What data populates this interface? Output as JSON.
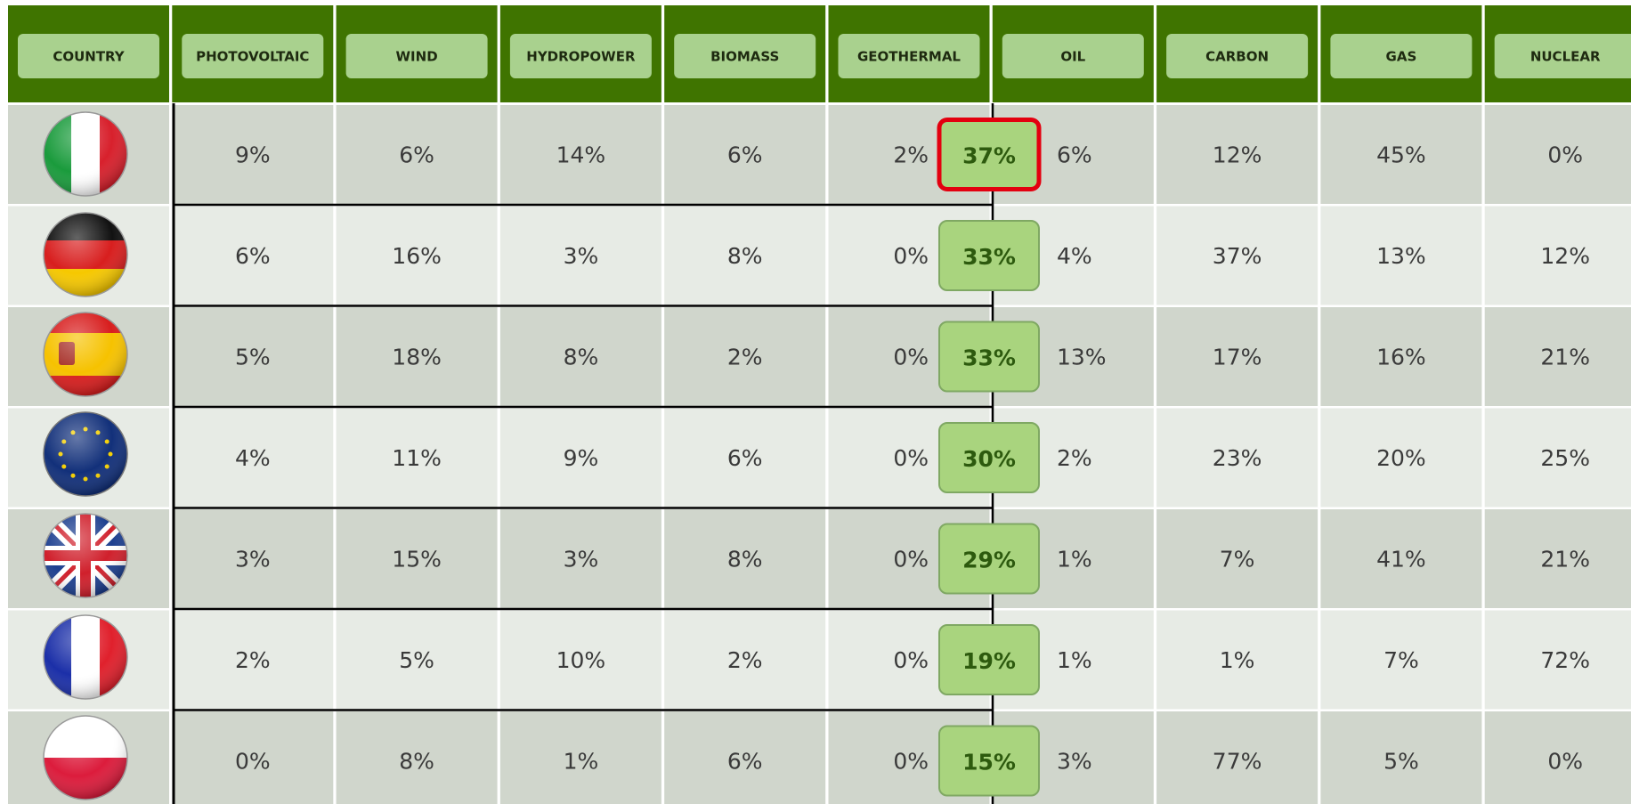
{
  "table": {
    "header": [
      "COUNTRY",
      "PHOTOVOLTAIC",
      "WIND",
      "HYDROPOWER",
      "BIOMASS",
      "GEOTHERMAL",
      "OIL",
      "CARBON",
      "GAS",
      "NUCLEAR"
    ],
    "highlight_row": 0,
    "rows": [
      {
        "values": [
          "9%",
          "6%",
          "14%",
          "6%",
          "2%",
          "6%",
          "12%",
          "45%",
          "0%"
        ],
        "badge": "37%"
      },
      {
        "values": [
          "6%",
          "16%",
          "3%",
          "8%",
          "0%",
          "4%",
          "37%",
          "13%",
          "12%"
        ],
        "badge": "33%"
      },
      {
        "values": [
          "5%",
          "18%",
          "8%",
          "2%",
          "0%",
          "13%",
          "17%",
          "16%",
          "21%"
        ],
        "badge": "33%"
      },
      {
        "values": [
          "4%",
          "11%",
          "9%",
          "6%",
          "0%",
          "2%",
          "23%",
          "20%",
          "25%"
        ],
        "badge": "30%"
      },
      {
        "values": [
          "3%",
          "15%",
          "3%",
          "8%",
          "0%",
          "1%",
          "7%",
          "41%",
          "21%"
        ],
        "badge": "29%"
      },
      {
        "values": [
          "2%",
          "5%",
          "10%",
          "2%",
          "0%",
          "1%",
          "1%",
          "7%",
          "72%"
        ],
        "badge": "19%"
      },
      {
        "values": [
          "0%",
          "8%",
          "1%",
          "6%",
          "0%",
          "3%",
          "77%",
          "5%",
          "0%"
        ],
        "badge": "15%"
      }
    ]
  }
}
